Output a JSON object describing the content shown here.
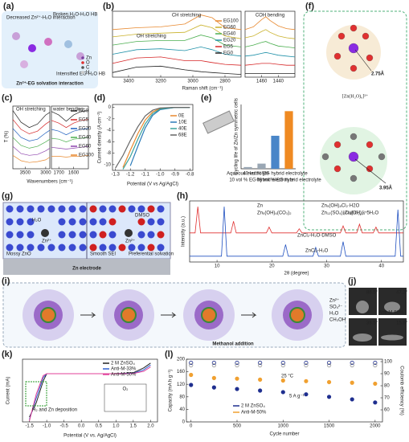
{
  "panels": {
    "a": {
      "label": "(a)",
      "texts": [
        "Decreased Zn²⁺-H₂O interaction",
        "Broken H₂O-H₂O HB",
        "Intensified EG-H₂O HB",
        "Zn²⁺-EG solvation interaction"
      ],
      "legend": [
        "Zn",
        "O",
        "C",
        "H"
      ]
    },
    "b": {
      "label": "(b)",
      "xlabel": "Raman shift (cm⁻¹)",
      "annotations": [
        "CH stretching",
        "OH stretching",
        "COH bending"
      ],
      "plots": [
        {
          "xlim": [
            3500,
            2700
          ],
          "xticks": [
            3400,
            3200,
            3000,
            2800
          ],
          "ylim": [
            0,
            7.2
          ],
          "x": [
            3500,
            3350,
            3200,
            3050,
            2950,
            2880,
            2800,
            2700
          ],
          "series": [
            {
              "name": "EG100",
              "color": "#e8892f",
              "values": [
                5.2,
                5.4,
                5.5,
                5.8,
                6.8,
                6.5,
                5.4,
                5.2
              ]
            },
            {
              "name": "EG60",
              "color": "#c9b12a",
              "values": [
                4.4,
                4.7,
                4.8,
                4.9,
                5.7,
                5.4,
                4.5,
                4.2
              ]
            },
            {
              "name": "EG40",
              "color": "#4caf50",
              "values": [
                3.5,
                3.9,
                4,
                4,
                4.6,
                4.3,
                3.5,
                3.3
              ]
            },
            {
              "name": "EG20",
              "color": "#1e90a8",
              "values": [
                2.5,
                3,
                3.1,
                2.9,
                3.3,
                3,
                2.5,
                2.3
              ]
            },
            {
              "name": "EG5",
              "color": "#d62728",
              "values": [
                1.5,
                2.1,
                2.2,
                1.8,
                1.8,
                1.6,
                1.4,
                1.3
              ]
            },
            {
              "name": "EG0",
              "color": "#222222",
              "values": [
                0.5,
                1.1,
                1.2,
                0.8,
                0.6,
                0.5,
                0.4,
                0.3
              ]
            }
          ]
        },
        {
          "xlim": [
            1480,
            1420
          ],
          "xticks": [
            1460,
            1440
          ],
          "ylim": [
            0,
            7.2
          ],
          "x": [
            1480,
            1470,
            1460,
            1455,
            1450,
            1440,
            1430,
            1420
          ],
          "series": [
            {
              "color": "#e8892f",
              "values": [
                5.2,
                5.5,
                6.3,
                6.6,
                6.2,
                5.6,
                5.3,
                5.2
              ]
            },
            {
              "color": "#c9b12a",
              "values": [
                4.3,
                4.5,
                5,
                5.2,
                4.9,
                4.5,
                4.3,
                4.2
              ]
            },
            {
              "color": "#4caf50",
              "values": [
                3.3,
                3.5,
                3.8,
                3.9,
                3.7,
                3.4,
                3.3,
                3.2
              ]
            },
            {
              "color": "#1e90a8",
              "values": [
                2.3,
                2.4,
                2.6,
                2.7,
                2.6,
                2.4,
                2.3,
                2.2
              ]
            },
            {
              "color": "#d62728",
              "values": [
                1.3,
                1.4,
                1.5,
                1.5,
                1.5,
                1.4,
                1.3,
                1.3
              ]
            },
            {
              "color": "#222222",
              "values": [
                0.4,
                0.4,
                0.4,
                0.4,
                0.4,
                0.4,
                0.4,
                0.4
              ]
            }
          ]
        }
      ]
    },
    "c": {
      "label": "(c)",
      "xlabel": "Wavenumbers (cm⁻¹)",
      "ylabel": "T (%)",
      "annotations": [
        "OH stretching",
        "water bending"
      ],
      "plots": [
        {
          "xlim": [
            3800,
            2900
          ],
          "xticks": [
            3500,
            3000
          ],
          "ylim": [
            0,
            7
          ],
          "x": [
            3800,
            3600,
            3400,
            3200,
            3000,
            2900
          ],
          "series": [
            {
              "name": "EG0",
              "color": "#222222",
              "values": [
                6.5,
                5.2,
                4.6,
                5.0,
                6.0,
                6.3
              ]
            },
            {
              "name": "EG5",
              "color": "#d62728",
              "values": [
                5.5,
                4.4,
                3.9,
                4.2,
                5.0,
                5.3
              ]
            },
            {
              "name": "EG20",
              "color": "#1f5fbf",
              "values": [
                4.5,
                3.5,
                3.1,
                3.3,
                4.0,
                4.3
              ]
            },
            {
              "name": "EG40",
              "color": "#4caf50",
              "values": [
                3.5,
                2.6,
                2.3,
                2.5,
                3.0,
                3.3
              ]
            },
            {
              "name": "EG60",
              "color": "#8e44ad",
              "values": [
                2.5,
                1.7,
                1.5,
                1.6,
                2.0,
                2.3
              ]
            },
            {
              "name": "EG100",
              "color": "#e8892f",
              "values": [
                1.5,
                0.9,
                0.7,
                0.8,
                1.0,
                1.3
              ]
            }
          ]
        },
        {
          "xlim": [
            1750,
            1500
          ],
          "xticks": [
            1700,
            1600
          ],
          "ylim": [
            0,
            7
          ],
          "x": [
            1750,
            1700,
            1650,
            1600,
            1550,
            1500
          ],
          "series": [
            {
              "color": "#222222",
              "values": [
                6.4,
                6.0,
                5.3,
                6.0,
                6.4,
                6.5
              ]
            },
            {
              "color": "#d62728",
              "values": [
                5.4,
                5.1,
                4.6,
                5.1,
                5.4,
                5.5
              ]
            },
            {
              "color": "#1f5fbf",
              "values": [
                4.4,
                4.2,
                3.8,
                4.2,
                4.4,
                4.5
              ]
            },
            {
              "color": "#4caf50",
              "values": [
                3.4,
                3.3,
                3.0,
                3.3,
                3.4,
                3.5
              ]
            },
            {
              "color": "#8e44ad",
              "values": [
                2.4,
                2.3,
                2.2,
                2.3,
                2.4,
                2.5
              ]
            },
            {
              "color": "#e8892f",
              "values": [
                1.4,
                1.4,
                1.3,
                1.4,
                1.4,
                1.5
              ]
            }
          ]
        }
      ]
    },
    "d": {
      "label": "(d)",
      "xlabel": "Potential (V vs Ag/AgCl)",
      "ylabel": "Current density (A cm⁻²)",
      "xlim": [
        -1.32,
        -0.78
      ],
      "xticks": [
        -1.3,
        -1.2,
        -1.1,
        {
          "value": -1,
          "label": "-1.0"
        },
        -0.9,
        -0.8
      ],
      "ylim": [
        -11,
        0.5
      ],
      "yticks": [
        -10,
        -8,
        -6,
        -4,
        -2,
        0
      ],
      "x": [
        -1.3,
        -1.25,
        -1.2,
        -1.15,
        -1.1,
        -1.05,
        -1,
        -0.9,
        -0.8
      ],
      "series": [
        {
          "name": "0E",
          "color": "#e8892f",
          "values": [
            null,
            -10.5,
            -7.5,
            -4.6,
            -2.2,
            -0.8,
            -0.2,
            0,
            0
          ]
        },
        {
          "name": "10E",
          "color": "#2b7bb9",
          "values": [
            null,
            null,
            -10.2,
            -6.8,
            -3.6,
            -1.4,
            -0.4,
            0,
            0
          ]
        },
        {
          "name": "40E",
          "color": "#3aa39a",
          "values": [
            null,
            -10.8,
            -8.6,
            -5.6,
            -2.9,
            -1.1,
            -0.3,
            0,
            0
          ]
        },
        {
          "name": "68E",
          "color": "#666666",
          "values": [
            -10.6,
            -8.4,
            -5.8,
            -3.4,
            -1.5,
            -0.5,
            -0.1,
            0,
            0
          ]
        }
      ]
    },
    "e": {
      "label": "(e)",
      "ylabel": "Cycling life of Zn/Zn symmetric cells",
      "ylim": [
        0,
        3000
      ],
      "categories": [
        "Aqueous electrolyte",
        "10 vol % EG hybrid electrolyte",
        "40 vol % EG hybrid electrolyte",
        "68 vol % EG hybrid electrolyte"
      ],
      "values": [
        80,
        240,
        1540,
        2688
      ],
      "colors": [
        "#9aa7b4",
        "#9aa7b4",
        "#4a86c8",
        "#ef8a22"
      ]
    },
    "f": {
      "label": "(f)",
      "texts": [
        "2.75Å",
        "[Zn(H₂O)₆]²⁺",
        "3.95Å",
        "[Zn(EG)₆]²⁺"
      ]
    },
    "g": {
      "label": "(g)",
      "texts": [
        "H₂O",
        "Zn²⁺",
        "DMSO",
        "Zn²⁺",
        "Mossy ZnO",
        "Smooth SEI",
        "Preferential solvation",
        "Zn electrode"
      ]
    },
    "h": {
      "label": "(h)",
      "xlabel": "2θ (degree)",
      "ylabel": "Intensity (a.u.)",
      "xlim": [
        5,
        44
      ],
      "xticks": [
        10,
        20,
        30,
        40
      ],
      "ylim": [
        0,
        10.5
      ],
      "legend": [
        "Zn",
        "Zn₅(OH)₈Cl₂·H2O",
        "Zn₅(OH)₆(CO₃)₂",
        "Zn₁₂(SO₄)₃Cl₃(OH)₁₅·5H₂O"
      ],
      "series": [
        {
          "name": "ZnCl₂-H₂O-DMSO",
          "color": "#e03030",
          "x": [
            5,
            6,
            6.5,
            7,
            12.5,
            13,
            13.5,
            19,
            19.5,
            20,
            24.5,
            25,
            25.5,
            32.5,
            33,
            33.5,
            35.5,
            36,
            36.5,
            38.5,
            39,
            39.5,
            44
          ],
          "values": [
            5,
            5,
            9.5,
            5,
            5,
            7,
            5,
            5,
            6,
            5,
            5,
            5.7,
            5,
            5,
            6.2,
            5,
            5,
            6.5,
            5,
            5,
            6,
            5,
            5
          ]
        },
        {
          "name": "ZnCl₂-H₂O",
          "color": "#2050c0",
          "x": [
            5,
            10.8,
            11.3,
            11.8,
            22,
            22.5,
            23,
            27.5,
            28,
            28.5,
            32.5,
            33,
            33.5,
            42.5,
            43,
            43.5,
            44
          ],
          "values": [
            1,
            1,
            9.5,
            1,
            1,
            3,
            1,
            1,
            2.5,
            1,
            1,
            3.5,
            1,
            1,
            9,
            1,
            1
          ]
        }
      ]
    },
    "i": {
      "label": "(i)",
      "texts": [
        "Methanol addition"
      ],
      "legend": [
        "Zn²⁺",
        "SO₄²⁻",
        "H₂O",
        "CH₃OH"
      ]
    },
    "j": {
      "label": "(j)",
      "angles": [
        "86.5°",
        "47.2°",
        "38.5°",
        "15.8°"
      ],
      "texts": [
        "Anti-M-50%"
      ]
    },
    "k": {
      "label": "(k)",
      "xlabel": "Potential (V vs. Ag/AgCl)",
      "ylabel": "Current (mA)",
      "annotations": [
        "H₂ and Zn deposition",
        "O₂"
      ],
      "xlim": [
        -1.7,
        2.2
      ],
      "xticks": [
        -1.5,
        {
          "value": -1,
          "label": "-1.0"
        },
        -0.5,
        {
          "value": 0,
          "label": "0.0"
        },
        0.5,
        {
          "value": 1,
          "label": "1.0"
        },
        1.5,
        {
          "value": 2,
          "label": "2.0"
        }
      ],
      "ylim": [
        -10,
        3
      ],
      "x": [
        -1.5,
        -1.3,
        -1.1,
        -1,
        -0.5,
        0,
        0.5,
        1,
        1.5,
        1.8,
        2
      ],
      "series": [
        {
          "name": "2 M ZnSO₄",
          "color": "#222222",
          "values": [
            -9,
            -6,
            -1.5,
            0,
            0,
            0,
            0,
            0,
            0.2,
            1.2,
            2.2
          ]
        },
        {
          "name": "Anti-M-33%",
          "color": "#3060d0",
          "values": [
            -9.5,
            -5,
            -0.8,
            0,
            0,
            0,
            0,
            0,
            0.1,
            0.8,
            1.8
          ]
        },
        {
          "name": "Anti-M-50%",
          "color": "#e0409a",
          "values": [
            -9.8,
            -4.2,
            -0.4,
            0,
            0,
            0,
            0,
            0,
            0.05,
            0.5,
            1.4
          ]
        }
      ]
    },
    "l": {
      "label": "(l)",
      "xlabel": "Cycle number",
      "ylabel": "Capacity (mA h g⁻¹)",
      "y2label": "Coulomb efficiency (%)",
      "annotations": [
        "25 °C",
        "5 A g⁻¹"
      ],
      "mode": "scatter",
      "xlim": [
        -50,
        2080
      ],
      "xticks": [
        0,
        500,
        1000,
        1500,
        2000
      ],
      "ylim": [
        0,
        200
      ],
      "yticks": [
        0,
        40,
        80,
        120,
        160,
        200
      ],
      "y2lim": [
        50,
        102
      ],
      "y2ticks": [
        60,
        70,
        80,
        90,
        100
      ],
      "x": [
        0,
        250,
        500,
        750,
        1000,
        1250,
        1500,
        1750,
        2000
      ],
      "series": [
        {
          "name": "2 M ZnSO₄",
          "color": "#1f2f8f",
          "values": [
            118,
            110,
            105,
            100,
            95,
            88,
            80,
            72,
            62
          ]
        },
        {
          "name": "Anti-M-50%",
          "color": "#f0a030",
          "values": [
            150,
            140,
            138,
            135,
            132,
            130,
            127,
            125,
            122
          ]
        },
        {
          "color": "#1f2f8f",
          "axis": "y2",
          "values": [
            99,
            99,
            99,
            99,
            99,
            99,
            99,
            99,
            99
          ]
        },
        {
          "color": "#9a9a9a",
          "axis": "y2",
          "values": [
            97,
            97,
            97,
            97,
            97,
            97,
            97,
            97,
            97
          ]
        }
      ]
    }
  }
}
